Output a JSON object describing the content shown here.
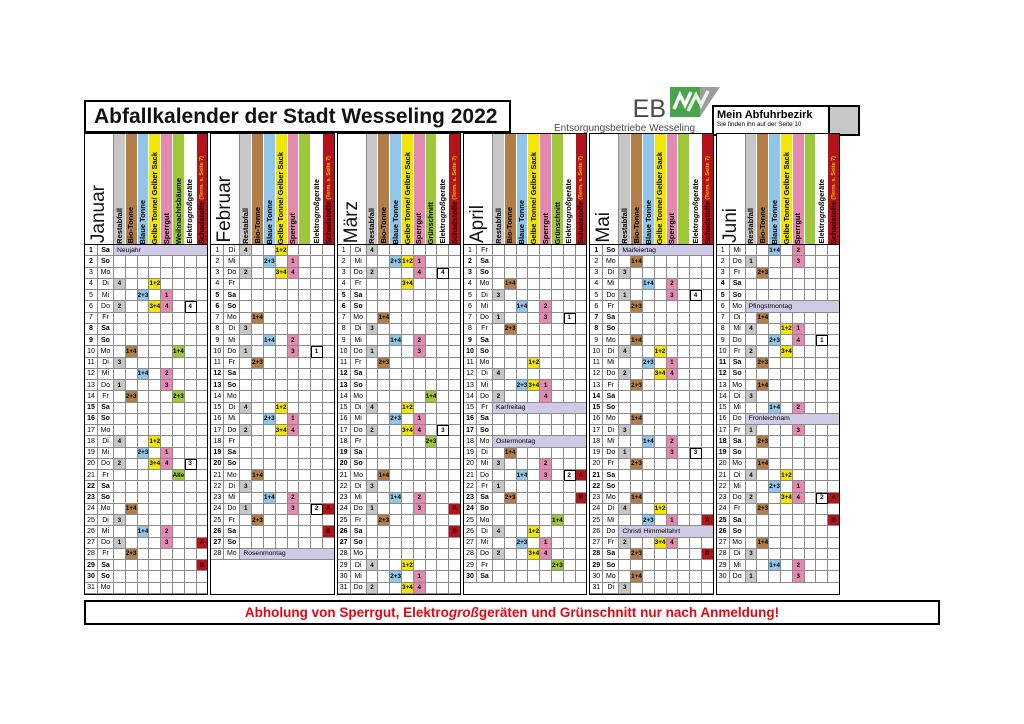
{
  "title": "Abfallkalender der Stadt Wesseling 2022",
  "brand": {
    "eb": "EB",
    "name": "Entsorgungsbetriebe Wesseling"
  },
  "district": {
    "title": "Mein Abfuhrbezirk",
    "note": "Sie finden ihn auf der Seite 10"
  },
  "footer": {
    "pre": "Abholung von Sperrgut, Elektro",
    "italic": "groß",
    "post": "geräten und Grünschnitt nur nach Anmeldung!"
  },
  "colors": {
    "rest": "#c7c7c7",
    "bio": "#b07e46",
    "blau": "#8fc6ea",
    "gelb": "#f3e600",
    "sperr": "#e48ab0",
    "gruen": "#9fc838",
    "elektro": "#ffffff",
    "schad": "#b5121b",
    "holiday": "#cfcbe6",
    "footer_red": "#e30613",
    "logo_green": "#4aa44e",
    "logo_gray": "#9d9d9c"
  },
  "columns": [
    {
      "key": "rest",
      "label": "Restabfall"
    },
    {
      "key": "bio",
      "label": "Bio-Tonne"
    },
    {
      "key": "blau",
      "label": "Blaue Tonne"
    },
    {
      "key": "gelb",
      "label": "Gelbe Tonne/ Gelber Sack"
    },
    {
      "key": "sperr",
      "label": "Sperrgut"
    },
    {
      "key": "gruen",
      "label": ""
    },
    {
      "key": "elektro",
      "label": "Elektrogroßgeräte"
    },
    {
      "key": "schad",
      "label": "Schadstoffe",
      "sublabel": "(Term. s. Seite 7)"
    }
  ],
  "months": [
    {
      "name": "Januar",
      "days": 31,
      "green_label": "Weihnachtsbäume",
      "weekdays": [
        "Sa",
        "So",
        "Mo",
        "Di",
        "Mi",
        "Do",
        "Fr",
        "Sa",
        "So",
        "Mo",
        "Di",
        "Mi",
        "Do",
        "Fr",
        "Sa",
        "So",
        "Mo",
        "Di",
        "Mi",
        "Do",
        "Fr",
        "Sa",
        "So",
        "Mo",
        "Di",
        "Mi",
        "Do",
        "Fr",
        "Sa",
        "So",
        "Mo"
      ],
      "holidays": {
        "1": "Neujahr"
      },
      "events": {
        "4": {
          "rest": "4",
          "gelb": "1+2"
        },
        "5": {
          "blau": "2+3",
          "sperr": "1"
        },
        "6": {
          "rest": "2",
          "gelb": "3+4",
          "sperr": "4",
          "elektro": "4"
        },
        "10": {
          "bio": "1+4",
          "gruen": "1+4"
        },
        "11": {
          "rest": "3"
        },
        "12": {
          "blau": "1+4",
          "sperr": "2"
        },
        "13": {
          "rest": "1",
          "sperr": "3"
        },
        "14": {
          "bio": "2+3",
          "gruen": "2+3"
        },
        "18": {
          "rest": "4",
          "gelb": "1+2"
        },
        "19": {
          "blau": "2+3",
          "sperr": "1"
        },
        "20": {
          "rest": "2",
          "gelb": "3+4",
          "sperr": "4",
          "elektro": "3"
        },
        "21": {
          "gruen": "Alle"
        },
        "24": {
          "bio": "1+4"
        },
        "25": {
          "rest": "3"
        },
        "26": {
          "blau": "1+4",
          "sperr": "2"
        },
        "27": {
          "rest": "1",
          "sperr": "3",
          "schad": "A"
        },
        "28": {
          "bio": "2+3"
        },
        "29": {
          "schad": "B"
        }
      }
    },
    {
      "name": "Februar",
      "days": 28,
      "green_label": "",
      "weekdays": [
        "Di",
        "Mi",
        "Do",
        "Fr",
        "Sa",
        "So",
        "Mo",
        "Di",
        "Mi",
        "Do",
        "Fr",
        "Sa",
        "So",
        "Mo",
        "Di",
        "Mi",
        "Do",
        "Fr",
        "Sa",
        "So",
        "Mo",
        "Di",
        "Mi",
        "Do",
        "Fr",
        "Sa",
        "So",
        "Mo"
      ],
      "holidays": {
        "28": "Rosenmontag"
      },
      "events": {
        "1": {
          "rest": "4",
          "gelb": "1+2"
        },
        "2": {
          "blau": "2+3",
          "sperr": "1"
        },
        "3": {
          "rest": "2",
          "gelb": "3+4",
          "sperr": "4"
        },
        "7": {
          "bio": "1+4"
        },
        "8": {
          "rest": "3"
        },
        "9": {
          "blau": "1+4",
          "sperr": "2"
        },
        "10": {
          "rest": "1",
          "sperr": "3",
          "elektro": "1"
        },
        "11": {
          "bio": "2+3"
        },
        "15": {
          "rest": "4",
          "gelb": "1+2"
        },
        "16": {
          "blau": "2+3",
          "sperr": "1"
        },
        "17": {
          "rest": "2",
          "gelb": "3+4",
          "sperr": "4"
        },
        "21": {
          "bio": "1+4"
        },
        "22": {
          "rest": "3"
        },
        "23": {
          "blau": "1+4",
          "sperr": "2"
        },
        "24": {
          "rest": "1",
          "sperr": "3",
          "elektro": "2",
          "schad": "A"
        },
        "25": {
          "bio": "2+3"
        },
        "26": {
          "schad": "B"
        }
      }
    },
    {
      "name": "März",
      "days": 31,
      "green_label": "Grünschnitt",
      "weekdays": [
        "Di",
        "Mi",
        "Do",
        "Fr",
        "Sa",
        "So",
        "Mo",
        "Di",
        "Mi",
        "Do",
        "Fr",
        "Sa",
        "So",
        "Mo",
        "Di",
        "Mi",
        "Do",
        "Fr",
        "Sa",
        "So",
        "Mo",
        "Di",
        "Mi",
        "Do",
        "Fr",
        "Sa",
        "So",
        "Mo",
        "Di",
        "Mi",
        "Do"
      ],
      "holidays": {},
      "events": {
        "1": {
          "rest": "4"
        },
        "2": {
          "blau": "2+3",
          "gelb": "1+2",
          "sperr": "1"
        },
        "3": {
          "rest": "2",
          "sperr": "4",
          "elektro": "4"
        },
        "4": {
          "gelb": "3+4"
        },
        "7": {
          "bio": "1+4"
        },
        "8": {
          "rest": "3"
        },
        "9": {
          "blau": "1+4",
          "sperr": "2"
        },
        "10": {
          "rest": "1",
          "sperr": "3"
        },
        "11": {
          "bio": "2+3"
        },
        "14": {
          "gruen": "1+4"
        },
        "15": {
          "rest": "4",
          "gelb": "1+2"
        },
        "16": {
          "blau": "2+3",
          "sperr": "1"
        },
        "17": {
          "rest": "2",
          "gelb": "3+4",
          "sperr": "4",
          "elektro": "3"
        },
        "18": {
          "gruen": "2+3"
        },
        "21": {
          "bio": "1+4"
        },
        "22": {
          "rest": "3"
        },
        "23": {
          "blau": "1+4",
          "sperr": "2"
        },
        "24": {
          "rest": "1",
          "sperr": "3",
          "schad": "A"
        },
        "25": {
          "bio": "2+3"
        },
        "26": {
          "schad": "B"
        },
        "29": {
          "rest": "4",
          "gelb": "1+2"
        },
        "30": {
          "blau": "2+3",
          "sperr": "1"
        },
        "31": {
          "rest": "2",
          "gelb": "3+4",
          "sperr": "4"
        }
      }
    },
    {
      "name": "April",
      "days": 30,
      "green_label": "Grünschnitt",
      "weekdays": [
        "Fr",
        "Sa",
        "So",
        "Mo",
        "Di",
        "Mi",
        "Do",
        "Fr",
        "Sa",
        "So",
        "Mo",
        "Di",
        "Mi",
        "Do",
        "Fr",
        "Sa",
        "So",
        "Mo",
        "Di",
        "Mi",
        "Do",
        "Fr",
        "Sa",
        "So",
        "Mo",
        "Di",
        "Mi",
        "Do",
        "Fr",
        "Sa"
      ],
      "holidays": {
        "15": "Karfreitag",
        "18": "Ostermontag"
      },
      "events": {
        "4": {
          "bio": "1+4"
        },
        "5": {
          "rest": "3"
        },
        "6": {
          "blau": "1+4",
          "sperr": "2"
        },
        "7": {
          "rest": "1",
          "sperr": "3",
          "elektro": "1"
        },
        "8": {
          "bio": "2+3"
        },
        "11": {
          "gelb": "1+2"
        },
        "12": {
          "rest": "4"
        },
        "13": {
          "blau": "2+3",
          "gelb": "3+4",
          "sperr": "1"
        },
        "14": {
          "rest": "2",
          "sperr": "4"
        },
        "19": {
          "bio": "1+4"
        },
        "20": {
          "rest": "3",
          "sperr": "2"
        },
        "21": {
          "blau": "1+4",
          "sperr": "3",
          "elektro": "2",
          "schad": "A"
        },
        "22": {
          "rest": "1"
        },
        "23": {
          "bio": "2+3",
          "schad": "B"
        },
        "25": {
          "gruen": "1+4"
        },
        "26": {
          "rest": "4",
          "gelb": "1+2"
        },
        "27": {
          "blau": "2+3",
          "sperr": "1"
        },
        "28": {
          "rest": "2",
          "gelb": "3+4",
          "sperr": "4"
        },
        "29": {
          "gruen": "2+3"
        }
      }
    },
    {
      "name": "Mai",
      "days": 31,
      "green_label": "",
      "weekdays": [
        "So",
        "Mo",
        "Di",
        "Mi",
        "Do",
        "Fr",
        "Sa",
        "So",
        "Mo",
        "Di",
        "Mi",
        "Do",
        "Fr",
        "Sa",
        "So",
        "Mo",
        "Di",
        "Mi",
        "Do",
        "Fr",
        "Sa",
        "So",
        "Mo",
        "Di",
        "Mi",
        "Do",
        "Fr",
        "Sa",
        "So",
        "Mo",
        "Di"
      ],
      "holidays": {
        "1": "Maifeiertag",
        "26": "Christi Himmelfahrt"
      },
      "events": {
        "2": {
          "bio": "1+4"
        },
        "3": {
          "rest": "3"
        },
        "4": {
          "blau": "1+4",
          "sperr": "2"
        },
        "5": {
          "rest": "1",
          "sperr": "3",
          "elektro": "4"
        },
        "6": {
          "bio": "2+3"
        },
        "9": {
          "bio": "1+4"
        },
        "10": {
          "rest": "4",
          "gelb": "1+2"
        },
        "11": {
          "blau": "2+3",
          "sperr": "1"
        },
        "12": {
          "rest": "2",
          "gelb": "3+4",
          "sperr": "4"
        },
        "13": {
          "bio": "2+3"
        },
        "16": {
          "bio": "1+4"
        },
        "17": {
          "rest": "3"
        },
        "18": {
          "blau": "1+4",
          "sperr": "2"
        },
        "19": {
          "rest": "1",
          "sperr": "3",
          "elektro": "3"
        },
        "20": {
          "bio": "2+3"
        },
        "23": {
          "bio": "1+4"
        },
        "24": {
          "rest": "4",
          "gelb": "1+2"
        },
        "25": {
          "blau": "2+3",
          "sperr": "1",
          "schad": "A"
        },
        "27": {
          "rest": "2",
          "gelb": "3+4",
          "sperr": "4"
        },
        "28": {
          "bio": "2+3",
          "schad": "B"
        },
        "30": {
          "bio": "1+4"
        },
        "31": {
          "rest": "3"
        }
      }
    },
    {
      "name": "Juni",
      "days": 30,
      "green_label": "",
      "weekdays": [
        "Mi",
        "Do",
        "Fr",
        "Sa",
        "So",
        "Mo",
        "Di",
        "Mi",
        "Do",
        "Fr",
        "Sa",
        "So",
        "Mo",
        "Di",
        "Mi",
        "Do",
        "Fr",
        "Sa",
        "So",
        "Mo",
        "Di",
        "Mi",
        "Do",
        "Fr",
        "Sa",
        "So",
        "Mo",
        "Di",
        "Mi",
        "Do"
      ],
      "holidays": {
        "6": "Pfingstmontag",
        "16": "Fronleichnam"
      },
      "events": {
        "1": {
          "blau": "1+4",
          "sperr": "2"
        },
        "2": {
          "rest": "1",
          "sperr": "3"
        },
        "3": {
          "bio": "2+3"
        },
        "7": {
          "bio": "1+4"
        },
        "8": {
          "rest": "4",
          "gelb": "1+2",
          "sperr": "1"
        },
        "9": {
          "blau": "2+3",
          "sperr": "4",
          "elektro": "1"
        },
        "10": {
          "rest": "2",
          "gelb": "3+4"
        },
        "11": {
          "bio": "2+3"
        },
        "13": {
          "bio": "1+4"
        },
        "14": {
          "rest": "3"
        },
        "15": {
          "blau": "1+4",
          "sperr": "2"
        },
        "17": {
          "rest": "1",
          "sperr": "3"
        },
        "18": {
          "bio": "2+3"
        },
        "20": {
          "bio": "1+4"
        },
        "21": {
          "rest": "4",
          "gelb": "1+2"
        },
        "22": {
          "blau": "2+3",
          "sperr": "1"
        },
        "23": {
          "rest": "2",
          "gelb": "3+4",
          "sperr": "4",
          "elektro": "2",
          "schad": "A"
        },
        "24": {
          "bio": "2+3"
        },
        "25": {
          "schad": "B"
        },
        "27": {
          "bio": "1+4"
        },
        "28": {
          "rest": "3"
        },
        "29": {
          "blau": "1+4",
          "sperr": "2"
        },
        "30": {
          "rest": "1",
          "sperr": "3"
        }
      }
    }
  ]
}
